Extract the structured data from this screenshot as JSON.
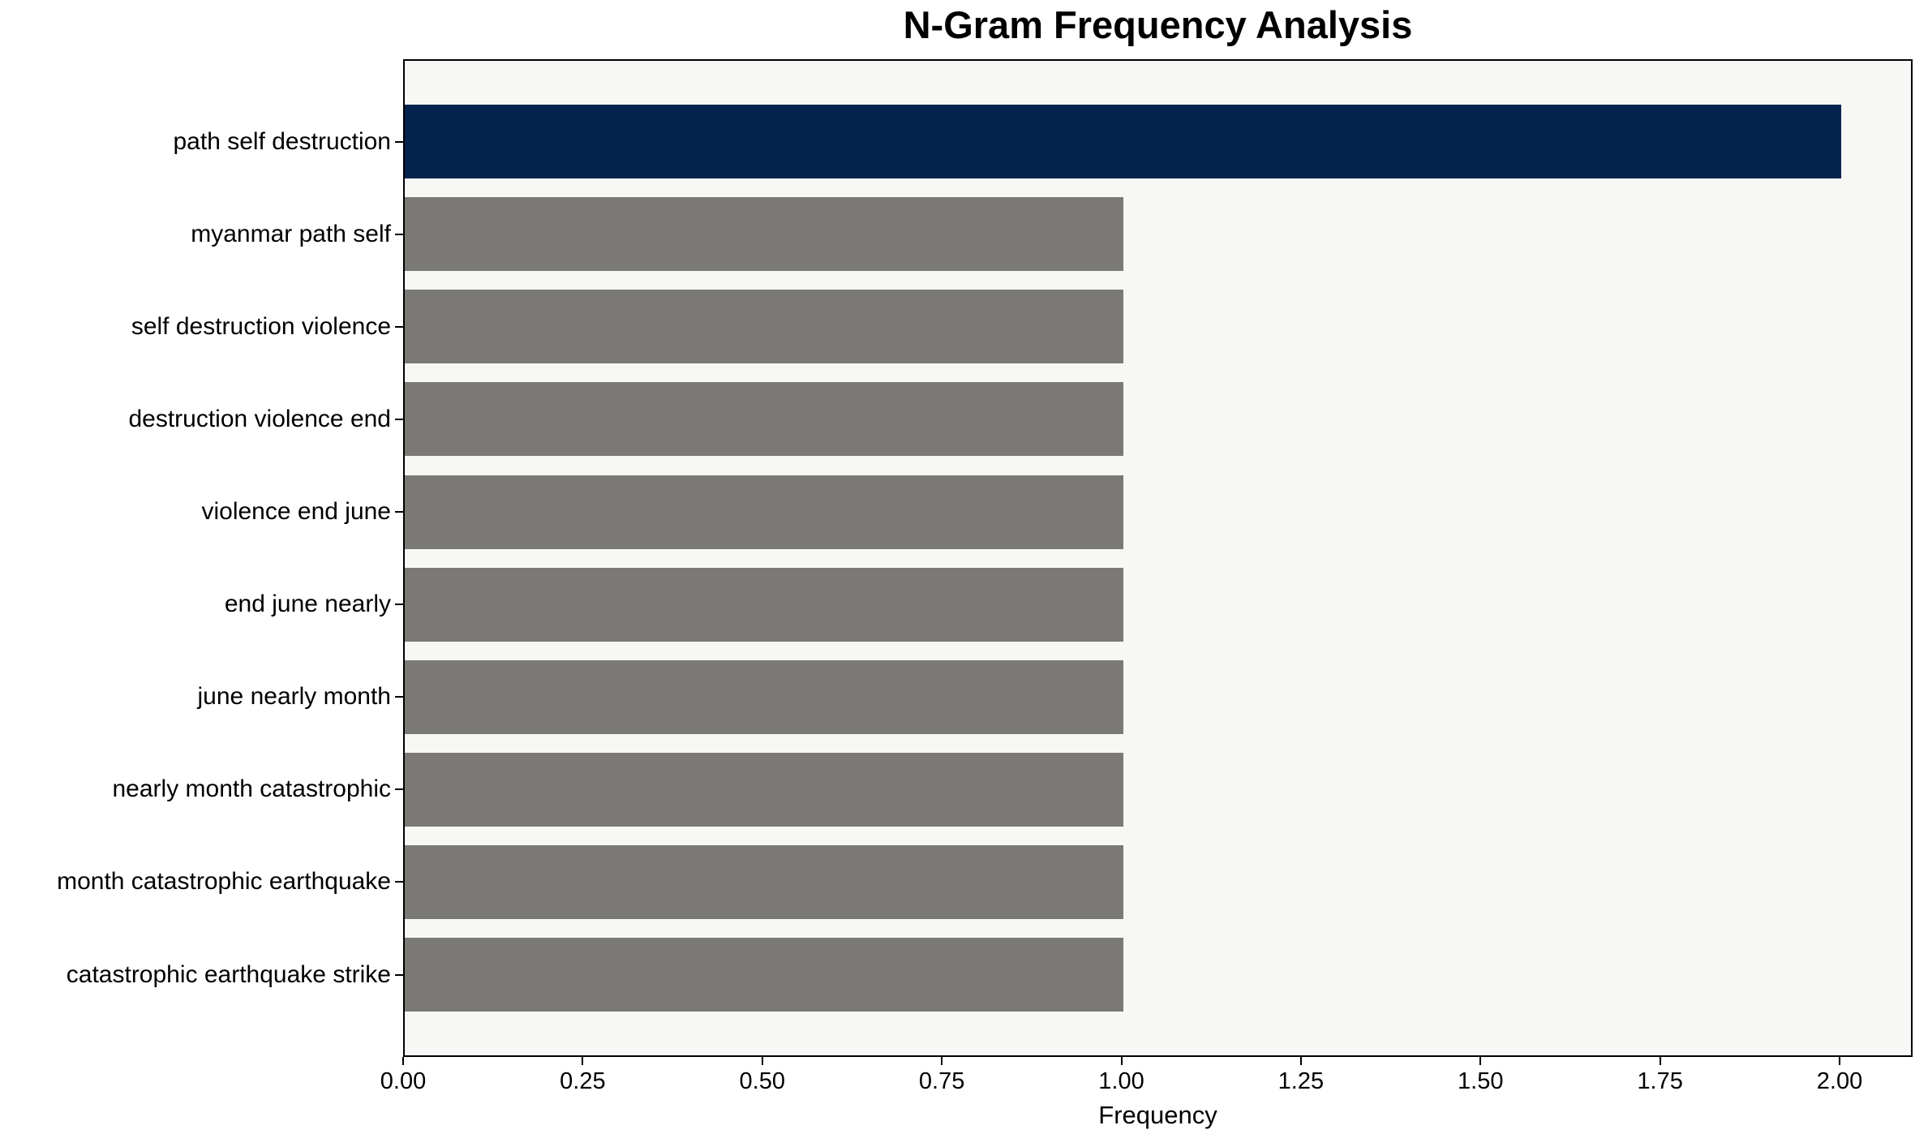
{
  "chart_data": {
    "type": "bar",
    "orientation": "horizontal",
    "title": "N-Gram Frequency Analysis",
    "xlabel": "Frequency",
    "ylabel": "",
    "categories": [
      "path self destruction",
      "myanmar path self",
      "self destruction violence",
      "destruction violence end",
      "violence end june",
      "end june nearly",
      "june nearly month",
      "nearly month catastrophic",
      "month catastrophic earthquake",
      "catastrophic earthquake strike"
    ],
    "values": [
      2,
      1,
      1,
      1,
      1,
      1,
      1,
      1,
      1,
      1
    ],
    "xlim": [
      0,
      2.1
    ],
    "x_tick_labels": [
      "0.00",
      "0.25",
      "0.50",
      "0.75",
      "1.00",
      "1.25",
      "1.50",
      "1.75",
      "2.00"
    ],
    "x_tick_values": [
      0,
      0.25,
      0.5,
      0.75,
      1.0,
      1.25,
      1.5,
      1.75,
      2.0
    ],
    "grid": false,
    "legend": "none",
    "highlight_index": 0,
    "bar_height_fraction": 0.8,
    "colors": {
      "highlight_bar": "#03234e",
      "default_bar": "#7a7975",
      "plot_background": "#f7f7f6",
      "figure_background": "#ffffff",
      "axis_line": "#000000",
      "text": "#000000"
    }
  }
}
